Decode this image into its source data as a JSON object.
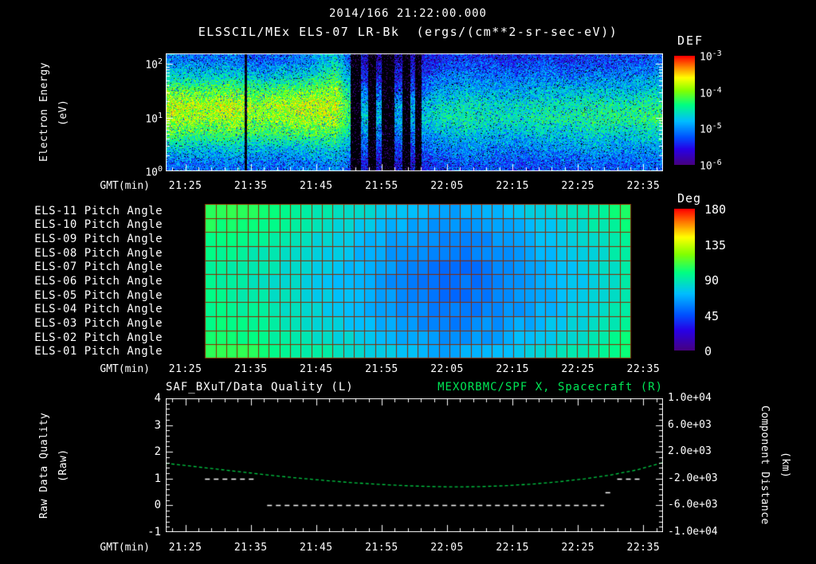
{
  "colors": {
    "background": "#000000",
    "text": "#ffffff",
    "green_text": "#00e655",
    "curve_green": "#00cc44",
    "grid_red": "#8b2a00",
    "rainbow": [
      {
        "p": 0.0,
        "rgb": [
          70,
          0,
          130
        ]
      },
      {
        "p": 0.14,
        "rgb": [
          40,
          0,
          230
        ]
      },
      {
        "p": 0.25,
        "rgb": [
          0,
          80,
          255
        ]
      },
      {
        "p": 0.4,
        "rgb": [
          0,
          190,
          255
        ]
      },
      {
        "p": 0.55,
        "rgb": [
          0,
          255,
          130
        ]
      },
      {
        "p": 0.68,
        "rgb": [
          130,
          255,
          0
        ]
      },
      {
        "p": 0.8,
        "rgb": [
          255,
          255,
          0
        ]
      },
      {
        "p": 0.9,
        "rgb": [
          255,
          130,
          0
        ]
      },
      {
        "p": 1.0,
        "rgb": [
          255,
          0,
          0
        ]
      }
    ]
  },
  "header": {
    "timestamp": "2014/166 21:22:00.000",
    "title": "ELSSCIL/MEx ELS-07 LR-Bk  (ergs/(cm**2-sr-sec-eV))"
  },
  "time_axis": {
    "label": "GMT(min)",
    "start_time": "21:22",
    "end_time": "22:38",
    "start_min": 0,
    "end_min": 76,
    "tick_labels": [
      "21:25",
      "21:35",
      "21:45",
      "21:55",
      "22:05",
      "22:15",
      "22:25",
      "22:35"
    ],
    "tick_minutes": [
      3,
      13,
      23,
      33,
      43,
      53,
      63,
      73
    ]
  },
  "chart_data": [
    {
      "id": "electron-energy-spectrogram",
      "type": "heatmap",
      "title": "ELSSCIL/MEx ELS-07 LR-Bk",
      "units_label": "(ergs/(cm**2-sr-sec-eV))",
      "xlabel": "GMT(min)",
      "ylabel_lines": [
        "Electron Energy",
        "(eV)"
      ],
      "y_scale": "log",
      "y_range_ev": [
        1,
        158
      ],
      "y_log10_ev_range": [
        0,
        2.2
      ],
      "y_tick_parts": [
        [
          "10",
          "2"
        ],
        [
          "10",
          "1"
        ],
        [
          "10",
          "0"
        ]
      ],
      "colorbar_label": "DEF",
      "colorbar_tick_parts": [
        [
          "10",
          "-3"
        ],
        [
          "10",
          "-4"
        ],
        [
          "10",
          "-5"
        ],
        [
          "10",
          "-6"
        ]
      ],
      "flux_log10_range": [
        -6.5,
        -3
      ],
      "col_centers_min": [
        2,
        6,
        10,
        14,
        18,
        22,
        26,
        30,
        34,
        38,
        42,
        46,
        50,
        54,
        58,
        62,
        66,
        70,
        74
      ],
      "row_centers_log10_ev": [
        0.1375,
        0.4125,
        0.6875,
        0.9625,
        1.2375,
        1.5125,
        1.7875,
        2.0625
      ],
      "log10_def_rows_low_to_high": [
        [
          -5.5,
          -5.5,
          -5.4,
          -5.5,
          -5.5,
          -5.4,
          -5.3,
          -5.9,
          -6.1,
          -6.0,
          -5.7,
          -5.6,
          -5.6,
          -5.7,
          -5.6,
          -5.6,
          -5.5,
          -5.6,
          -5.5
        ],
        [
          -5.0,
          -5.1,
          -5.0,
          -5.1,
          -5.1,
          -5.0,
          -4.9,
          -5.6,
          -5.8,
          -5.7,
          -5.4,
          -5.3,
          -5.4,
          -5.4,
          -5.3,
          -5.3,
          -5.2,
          -5.3,
          -5.2
        ],
        [
          -4.4,
          -4.5,
          -4.4,
          -4.5,
          -4.5,
          -4.4,
          -4.4,
          -5.3,
          -5.5,
          -5.4,
          -5.1,
          -5.0,
          -5.1,
          -5.1,
          -5.0,
          -5.0,
          -4.9,
          -5.0,
          -4.9
        ],
        [
          -4.0,
          -4.1,
          -4.0,
          -4.2,
          -4.1,
          -4.0,
          -4.0,
          -5.0,
          -5.2,
          -5.1,
          -4.8,
          -4.7,
          -4.8,
          -4.8,
          -4.7,
          -4.7,
          -4.6,
          -4.6,
          -4.5
        ],
        [
          -3.9,
          -4.0,
          -3.9,
          -4.1,
          -4.0,
          -3.9,
          -3.9,
          -5.1,
          -5.3,
          -5.2,
          -4.9,
          -4.8,
          -4.9,
          -4.9,
          -4.8,
          -4.8,
          -4.7,
          -4.7,
          -4.6
        ],
        [
          -4.3,
          -4.4,
          -4.3,
          -4.5,
          -4.4,
          -4.3,
          -4.1,
          -5.5,
          -5.7,
          -5.6,
          -5.2,
          -5.1,
          -5.2,
          -5.2,
          -5.1,
          -5.1,
          -5.0,
          -5.1,
          -5.0
        ],
        [
          -4.9,
          -5.0,
          -4.9,
          -5.1,
          -5.0,
          -4.9,
          -4.5,
          -5.9,
          -6.0,
          -5.9,
          -5.5,
          -5.4,
          -5.5,
          -5.5,
          -5.4,
          -5.5,
          -5.4,
          -5.4,
          -5.3
        ],
        [
          -5.4,
          -5.5,
          -5.4,
          -5.6,
          -5.5,
          -5.4,
          -4.9,
          -6.1,
          -6.2,
          -6.1,
          -5.8,
          -5.7,
          -5.8,
          -5.8,
          -5.7,
          -5.8,
          -5.7,
          -5.7,
          -5.6
        ]
      ],
      "gap_stripes": [
        [
          29,
          0.8
        ],
        [
          31.5,
          0.6
        ],
        [
          34,
          1.0
        ],
        [
          36.8,
          0.6
        ],
        [
          38.6,
          0.5
        ],
        [
          12.2,
          0.2
        ]
      ]
    },
    {
      "id": "pitch-angle-panel",
      "type": "heatmap",
      "rows": [
        "ELS-11 Pitch Angle",
        "ELS-10 Pitch Angle",
        "ELS-09 Pitch Angle",
        "ELS-08 Pitch Angle",
        "ELS-07 Pitch Angle",
        "ELS-06 Pitch Angle",
        "ELS-05 Pitch Angle",
        "ELS-04 Pitch Angle",
        "ELS-03 Pitch Angle",
        "ELS-02 Pitch Angle",
        "ELS-01 Pitch Angle"
      ],
      "xlabel": "GMT(min)",
      "colorbar_label": "Deg",
      "colorbar_ticks": [
        "180",
        "135",
        "90",
        "45",
        "0"
      ],
      "deg_range": [
        0,
        180
      ],
      "data_start_min": 6,
      "data_end_min": 71,
      "cell_count": 40,
      "row_curvature": 0.55,
      "profile_t_min": [
        6,
        14,
        22,
        30,
        36,
        41,
        44,
        48,
        54,
        60,
        66,
        71
      ],
      "profile_deg": [
        96,
        89,
        79,
        68,
        59,
        54,
        52,
        54,
        61,
        70,
        81,
        91
      ]
    },
    {
      "id": "quality-and-spacecraft-x",
      "type": "line",
      "xlabel": "GMT(min)",
      "left_axis": {
        "label_lines": [
          "Raw Data Quality",
          "(Raw)"
        ],
        "range": [
          -1,
          4
        ],
        "ticks": [
          "4",
          "3",
          "2",
          "1",
          "0",
          "-1"
        ]
      },
      "right_axis": {
        "label_lines": [
          "Component Distance",
          "(km)"
        ],
        "range": [
          -10000,
          10000
        ],
        "ticks": [
          "1.0e+04",
          "6.0e+03",
          "2.0e+03",
          "-2.0e+03",
          "-6.0e+03",
          "-1.0e+04"
        ]
      },
      "series": [
        {
          "name": "SAF_BXuT/Data Quality (L)",
          "axis": "left",
          "style": "dashed-white",
          "segments": [
            {
              "value": 1,
              "from_min": 6,
              "to_min": 14
            },
            {
              "value": 0,
              "from_min": 15.5,
              "to_min": 67
            },
            {
              "value": 0.5,
              "from_min": 67.2,
              "to_min": 68.2
            },
            {
              "value": 1,
              "from_min": 69,
              "to_min": 72.8
            }
          ]
        },
        {
          "name": "MEXORBMC/SPF X, Spacecraft (R)",
          "axis": "right",
          "style": "dashed-green",
          "t_min": [
            0,
            4,
            8,
            12,
            16,
            20,
            24,
            28,
            32,
            36,
            40,
            44,
            48,
            52,
            56,
            60,
            64,
            68,
            72,
            76
          ],
          "km": [
            300,
            -150,
            -600,
            -1050,
            -1500,
            -1900,
            -2250,
            -2570,
            -2830,
            -3030,
            -3170,
            -3240,
            -3200,
            -3060,
            -2820,
            -2480,
            -2030,
            -1460,
            -700,
            400
          ]
        }
      ]
    }
  ]
}
